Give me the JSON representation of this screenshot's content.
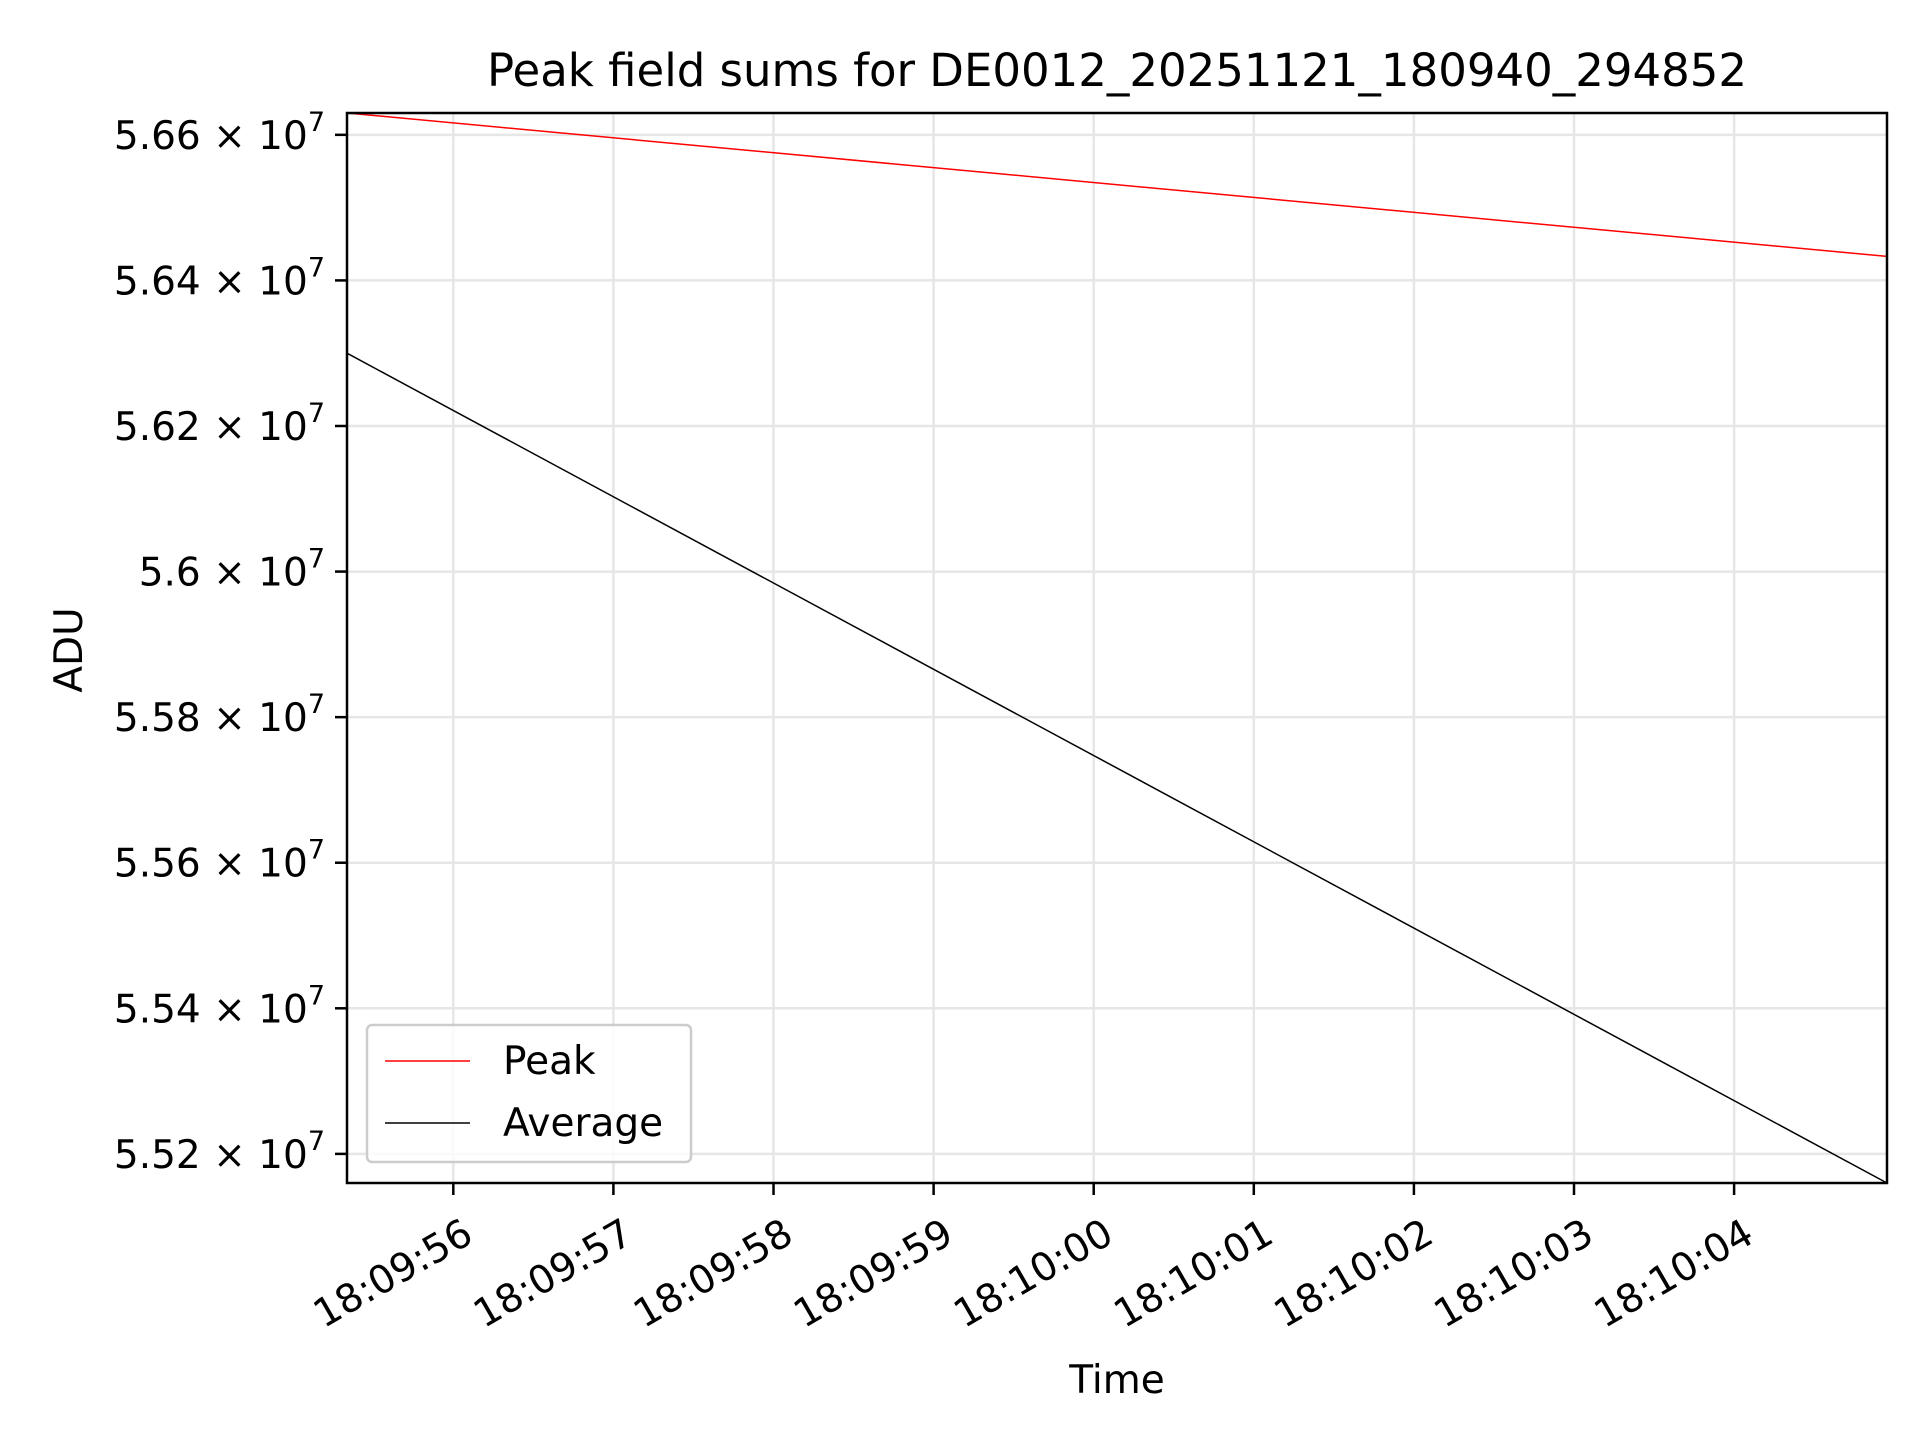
{
  "chart_data": {
    "type": "line",
    "title": "Peak field sums for DE0012_20251121_180940_294852",
    "xlabel": "Time",
    "ylabel": "ADU",
    "x_range": [
      "18:09:55.336",
      "18:10:04.955"
    ],
    "ylim": [
      55160000,
      56630000
    ],
    "x_ticks": [
      {
        "label": "18:09:56",
        "value": "18:09:56"
      },
      {
        "label": "18:09:57",
        "value": "18:09:57"
      },
      {
        "label": "18:09:58",
        "value": "18:09:58"
      },
      {
        "label": "18:09:59",
        "value": "18:09:59"
      },
      {
        "label": "18:10:00",
        "value": "18:10:00"
      },
      {
        "label": "18:10:01",
        "value": "18:10:01"
      },
      {
        "label": "18:10:02",
        "value": "18:10:02"
      },
      {
        "label": "18:10:03",
        "value": "18:10:03"
      },
      {
        "label": "18:10:04",
        "value": "18:10:04"
      }
    ],
    "y_ticks": [
      {
        "value": 55200000,
        "mantissa": "5.52",
        "times": "×",
        "base": "10",
        "exponent": "7"
      },
      {
        "value": 55400000,
        "mantissa": "5.54",
        "times": "×",
        "base": "10",
        "exponent": "7"
      },
      {
        "value": 55600000,
        "mantissa": "5.56",
        "times": "×",
        "base": "10",
        "exponent": "7"
      },
      {
        "value": 55800000,
        "mantissa": "5.58",
        "times": "×",
        "base": "10",
        "exponent": "7"
      },
      {
        "value": 56000000,
        "mantissa": "5.6",
        "times": "×",
        "base": "10",
        "exponent": "7"
      },
      {
        "value": 56200000,
        "mantissa": "5.62",
        "times": "×",
        "base": "10",
        "exponent": "7"
      },
      {
        "value": 56400000,
        "mantissa": "5.64",
        "times": "×",
        "base": "10",
        "exponent": "7"
      },
      {
        "value": 56600000,
        "mantissa": "5.66",
        "times": "×",
        "base": "10",
        "exponent": "7"
      }
    ],
    "grid": true,
    "legend_position": "lower-left",
    "series": [
      {
        "name": "Peak",
        "color": "#ff0000",
        "points": [
          {
            "x": "18:09:55.336",
            "y": 56630000
          },
          {
            "x": "18:10:04.955",
            "y": 56433000
          }
        ]
      },
      {
        "name": "Average",
        "color": "#000000",
        "points": [
          {
            "x": "18:09:55.336",
            "y": 56300000
          },
          {
            "x": "18:10:04.955",
            "y": 55160000
          }
        ]
      }
    ]
  }
}
